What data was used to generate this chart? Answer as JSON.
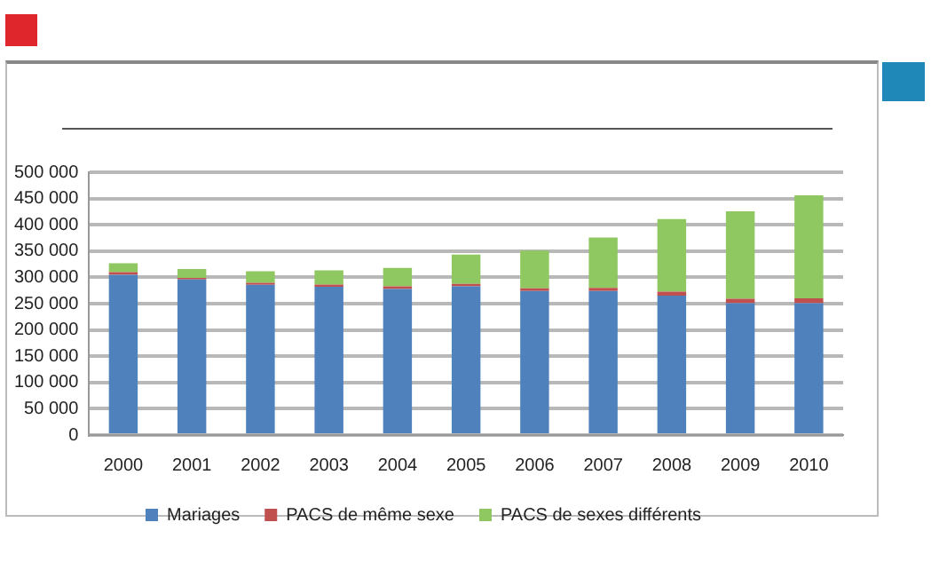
{
  "chart_data": {
    "type": "bar",
    "stacked": true,
    "categories": [
      "2000",
      "2001",
      "2002",
      "2003",
      "2004",
      "2005",
      "2006",
      "2007",
      "2008",
      "2009",
      "2010"
    ],
    "series": [
      {
        "name": "Mariages",
        "color": "#4f81bd",
        "values": [
          305000,
          296000,
          286000,
          282000,
          278000,
          283000,
          274000,
          274000,
          265000,
          251000,
          251000
        ]
      },
      {
        "name": "PACS de même sexe",
        "color": "#c0504d",
        "values": [
          5000,
          3000,
          3500,
          4300,
          5000,
          4500,
          5000,
          6000,
          8000,
          8500,
          9000
        ]
      },
      {
        "name": "PACS de sexes différents",
        "color": "#8fc760",
        "values": [
          17000,
          17000,
          22000,
          27000,
          35000,
          56000,
          72000,
          96000,
          138000,
          166000,
          196000
        ]
      }
    ],
    "ylim": [
      0,
      500000
    ],
    "yticks": [
      {
        "value": 0,
        "label": "0"
      },
      {
        "value": 50000,
        "label": "50 000"
      },
      {
        "value": 100000,
        "label": "100 000"
      },
      {
        "value": 150000,
        "label": "150 000"
      },
      {
        "value": 200000,
        "label": "200 000"
      },
      {
        "value": 250000,
        "label": "250 000"
      },
      {
        "value": 300000,
        "label": "300 000"
      },
      {
        "value": 350000,
        "label": "350 000"
      },
      {
        "value": 400000,
        "label": "400 000"
      },
      {
        "value": 450000,
        "label": "450 000"
      },
      {
        "value": 500000,
        "label": "500 000"
      }
    ],
    "grid": "y",
    "legend": "bottom"
  }
}
